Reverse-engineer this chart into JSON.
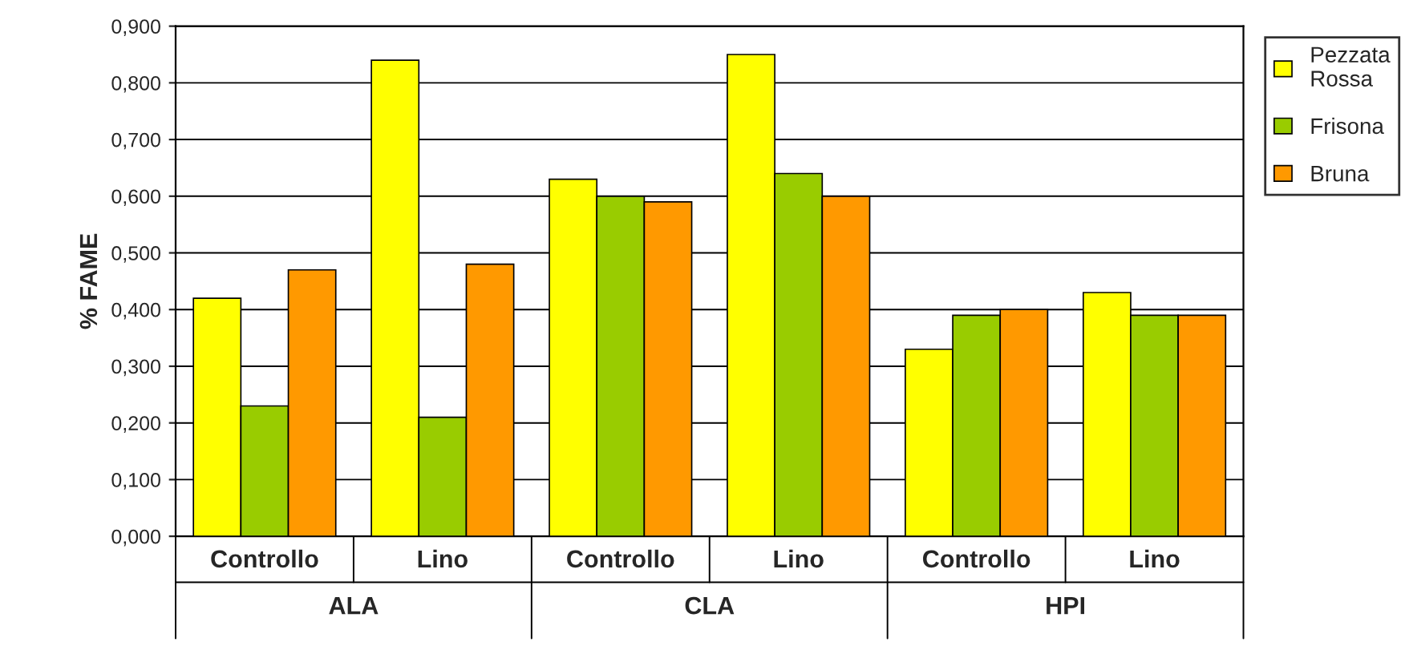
{
  "chart_data": {
    "type": "bar",
    "ylabel": "% FAME",
    "categories": [
      "Controllo",
      "Lino",
      "Controllo",
      "Lino",
      "Controllo",
      "Lino"
    ],
    "annotations": [
      "ALA",
      "CLA",
      "HPI"
    ],
    "series": [
      {
        "name": "Pezzata Rossa",
        "color": "#ffff00",
        "values": [
          0.42,
          0.84,
          0.63,
          0.85,
          0.33,
          0.43
        ]
      },
      {
        "name": "Frisona",
        "color": "#99cc00",
        "values": [
          0.23,
          0.21,
          0.6,
          0.64,
          0.39,
          0.39
        ]
      },
      {
        "name": "Bruna",
        "color": "#ff9900",
        "values": [
          0.47,
          0.48,
          0.59,
          0.6,
          0.4,
          0.39
        ]
      }
    ],
    "ylim": [
      0,
      0.9
    ],
    "yticks": [
      {
        "value": 0,
        "label": "0,000"
      },
      {
        "value": 0.1,
        "label": "0,100"
      },
      {
        "value": 0.2,
        "label": "0,200"
      },
      {
        "value": 0.3,
        "label": "0,300"
      },
      {
        "value": 0.4,
        "label": "0,400"
      },
      {
        "value": 0.5,
        "label": "0,500"
      },
      {
        "value": 0.6,
        "label": "0,600"
      },
      {
        "value": 0.7,
        "label": "0,700"
      },
      {
        "value": 0.8,
        "label": "0,800"
      },
      {
        "value": 0.9,
        "label": "0,900"
      }
    ],
    "grid": "y",
    "legend": "right"
  }
}
